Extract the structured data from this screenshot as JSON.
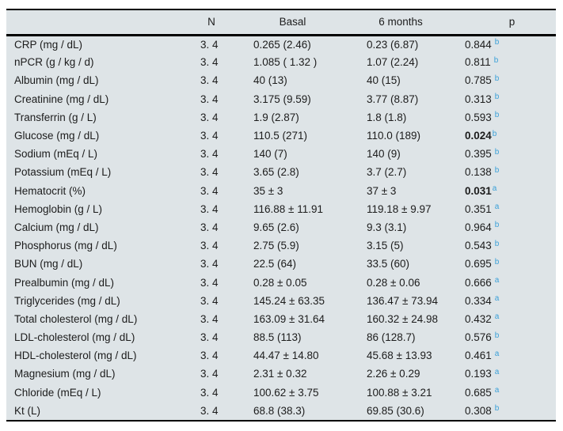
{
  "colors": {
    "table_background": "#dee4e7",
    "rule_color": "#000000",
    "text_color": "#1c1c1c",
    "superscript_blue": "#3aa0d8"
  },
  "table": {
    "columns": [
      "",
      "N",
      "Basal",
      "6 months",
      "p"
    ],
    "rows": [
      {
        "label": "CRP (mg / dL)",
        "n": "3. 4",
        "basal": "0.265 (2.46)",
        "six_months": "0.23 (6.87)",
        "p": "0.844",
        "p_sup": "b",
        "p_bold": false
      },
      {
        "label": "nPCR (g / kg / d)",
        "n": "3. 4",
        "basal": "1.085 ( 1.32 )",
        "six_months": "1.07 (2.24)",
        "p": "0.811",
        "p_sup": "b",
        "p_bold": false
      },
      {
        "label": "Albumin (mg / dL)",
        "n": "3. 4",
        "basal": "40 (13)",
        "six_months": "40 (15)",
        "p": "0.785",
        "p_sup": "b",
        "p_bold": false
      },
      {
        "label": "Creatinine (mg / dL)",
        "n": "3. 4",
        "basal": "3.175 (9.59)",
        "six_months": "3.77 (8.87)",
        "p": "0.313",
        "p_sup": "b",
        "p_bold": false
      },
      {
        "label": "Transferrin (g / L)",
        "n": "3. 4",
        "basal": "1.9 (2.87)",
        "six_months": "1.8 (1.8)",
        "p": "0.593",
        "p_sup": "b",
        "p_bold": false
      },
      {
        "label": "Glucose (mg / dL)",
        "n": "3. 4",
        "basal": "110.5 (271)",
        "six_months": "110.0 (189)",
        "p": "0.024",
        "p_sup": "b",
        "p_bold": true
      },
      {
        "label": "Sodium (mEq / L)",
        "n": "3. 4",
        "basal": "140 (7)",
        "six_months": "140 (9)",
        "p": "0.395",
        "p_sup": "b",
        "p_bold": false
      },
      {
        "label": "Potassium (mEq / L)",
        "n": "3. 4",
        "basal": "3.65 (2.8)",
        "six_months": "3.7 (2.7)",
        "p": "0.138",
        "p_sup": "b",
        "p_bold": false
      },
      {
        "label": "Hematocrit (%)",
        "n": "3. 4",
        "basal": "35 ± 3",
        "six_months": "37 ± 3",
        "p": "0.031",
        "p_sup": "a",
        "p_bold": true
      },
      {
        "label": "Hemoglobin (g / L)",
        "n": "3. 4",
        "basal": "116.88 ± 11.91",
        "six_months": "119.18 ± 9.97",
        "p": "0.351",
        "p_sup": "a",
        "p_bold": false
      },
      {
        "label": "Calcium (mg / dL)",
        "n": "3. 4",
        "basal": "9.65 (2.6)",
        "six_months": "9.3 (3.1)",
        "p": "0.964",
        "p_sup": "b",
        "p_bold": false
      },
      {
        "label": "Phosphorus (mg / dL)",
        "n": "3. 4",
        "basal": "2.75 (5.9)",
        "six_months": "3.15 (5)",
        "p": "0.543",
        "p_sup": "b",
        "p_bold": false
      },
      {
        "label": "BUN (mg / dL)",
        "n": "3. 4",
        "basal": "22.5 (64)",
        "six_months": "33.5 (60)",
        "p": "0.695",
        "p_sup": "b",
        "p_bold": false
      },
      {
        "label": "Prealbumin (mg / dL)",
        "n": "3. 4",
        "basal": "0.28 ± 0.05",
        "six_months": "0.28 ± 0.06",
        "p": "0.666",
        "p_sup": "a",
        "p_bold": false
      },
      {
        "label": "Triglycerides (mg / dL)",
        "n": "3. 4",
        "basal": "145.24 ± 63.35",
        "six_months": "136.47 ± 73.94",
        "p": "0.334",
        "p_sup": "a",
        "p_bold": false
      },
      {
        "label": "Total cholesterol (mg / dL)",
        "n": "3. 4",
        "basal": "163.09 ± 31.64",
        "six_months": "160.32 ± 24.98",
        "p": "0.432",
        "p_sup": "a",
        "p_bold": false
      },
      {
        "label": "LDL-cholesterol (mg / dL)",
        "n": "3. 4",
        "basal": "88.5 (113)",
        "six_months": "86 (128.7)",
        "p": "0.576",
        "p_sup": "b",
        "p_bold": false
      },
      {
        "label": "HDL-cholesterol (mg / dL)",
        "n": "3. 4",
        "basal": "44.47 ± 14.80",
        "six_months": "45.68 ± 13.93",
        "p": "0.461",
        "p_sup": "a",
        "p_bold": false
      },
      {
        "label": "Magnesium (mg / dL)",
        "n": "3. 4",
        "basal": "2.31 ± 0.32",
        "six_months": "2.26 ± 0.29",
        "p": "0.193",
        "p_sup": "a",
        "p_bold": false
      },
      {
        "label": "Chloride (mEq / L)",
        "n": "3. 4",
        "basal": "100.62 ± 3.75",
        "six_months": "100.88 ± 3.21",
        "p": "0.685",
        "p_sup": "a",
        "p_bold": false
      },
      {
        "label": "Kt (L)",
        "n": "3. 4",
        "basal": "68.8 (38.3)",
        "six_months": "69.85 (30.6)",
        "p": "0.308",
        "p_sup": "b",
        "p_bold": false
      }
    ]
  }
}
